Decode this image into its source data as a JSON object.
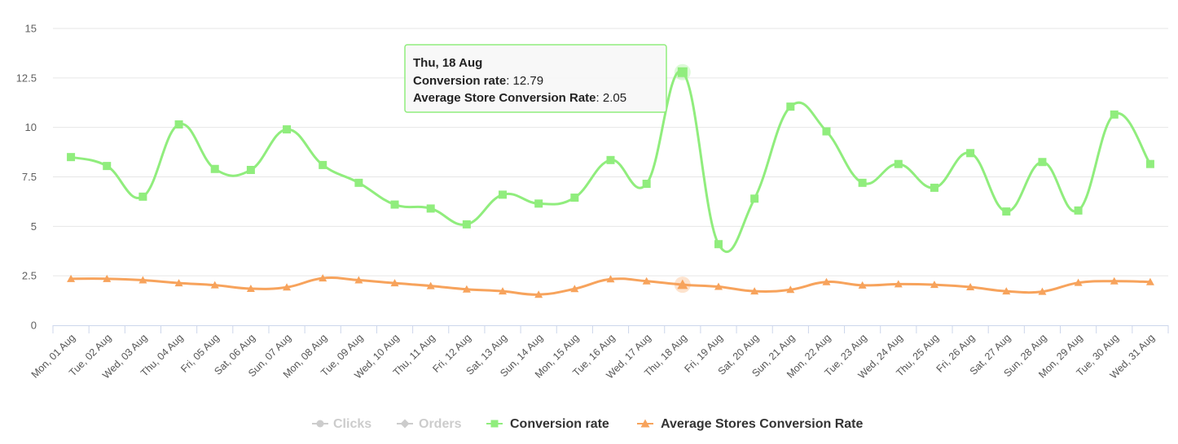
{
  "chart_data": {
    "type": "line",
    "categories": [
      "Mon, 01 Aug",
      "Tue, 02 Aug",
      "Wed, 03 Aug",
      "Thu, 04 Aug",
      "Fri, 05 Aug",
      "Sat, 06 Aug",
      "Sun, 07 Aug",
      "Mon, 08 Aug",
      "Tue, 09 Aug",
      "Wed, 10 Aug",
      "Thu, 11 Aug",
      "Fri, 12 Aug",
      "Sat, 13 Aug",
      "Sun, 14 Aug",
      "Mon, 15 Aug",
      "Tue, 16 Aug",
      "Wed, 17 Aug",
      "Thu, 18 Aug",
      "Fri, 19 Aug",
      "Sat, 20 Aug",
      "Sun, 21 Aug",
      "Mon, 22 Aug",
      "Tue, 23 Aug",
      "Wed, 24 Aug",
      "Thu, 25 Aug",
      "Fri, 26 Aug",
      "Sat, 27 Aug",
      "Sun, 28 Aug",
      "Mon, 29 Aug",
      "Tue, 30 Aug",
      "Wed, 31 Aug"
    ],
    "series": [
      {
        "name": "Conversion rate",
        "color": "#90ed7d",
        "marker": "square",
        "values": [
          8.5,
          8.05,
          6.5,
          10.15,
          7.9,
          7.85,
          9.9,
          8.1,
          7.2,
          6.1,
          5.9,
          5.1,
          6.6,
          6.15,
          6.45,
          8.35,
          7.15,
          12.79,
          4.1,
          6.4,
          11.05,
          9.8,
          7.2,
          8.15,
          6.95,
          8.7,
          5.75,
          8.25,
          5.8,
          10.65,
          8.15
        ]
      },
      {
        "name": "Average Stores Conversion Rate",
        "color": "#f7a35c",
        "marker": "triangle",
        "values": [
          2.35,
          2.35,
          2.28,
          2.13,
          2.03,
          1.85,
          1.92,
          2.38,
          2.28,
          2.13,
          1.99,
          1.82,
          1.72,
          1.55,
          1.84,
          2.33,
          2.23,
          2.05,
          1.95,
          1.72,
          1.8,
          2.19,
          2.02,
          2.08,
          2.05,
          1.93,
          1.72,
          1.7,
          2.15,
          2.23,
          2.19
        ]
      }
    ],
    "ylim": [
      0,
      15
    ],
    "yticks": [
      "15",
      "12.5",
      "10",
      "7.5",
      "5",
      "2.5",
      "0"
    ],
    "grid": true,
    "legend": {
      "position": "bottom-center",
      "items": [
        {
          "label": "Clicks",
          "visible": false,
          "marker": "circle"
        },
        {
          "label": "Orders",
          "visible": false,
          "marker": "diamond"
        },
        {
          "label": "Conversion rate",
          "visible": true,
          "marker": "square",
          "color": "#90ed7d"
        },
        {
          "label": "Average Stores Conversion Rate",
          "visible": true,
          "marker": "triangle",
          "color": "#f7a35c"
        }
      ]
    },
    "tooltip": {
      "date": "Thu, 18 Aug",
      "line1_label": "Conversion rate",
      "line1_value": ": 12.79",
      "line2_label": "Average Store Conversion Rate",
      "line2_value": ": 2.05",
      "category_index": 17
    }
  }
}
